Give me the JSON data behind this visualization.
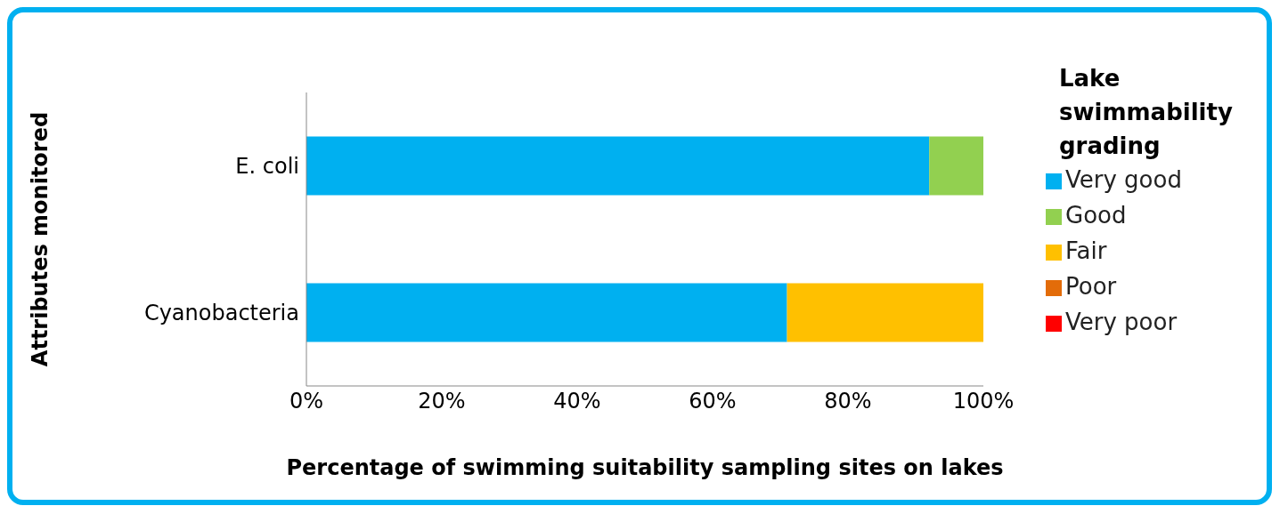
{
  "chart_data": {
    "type": "bar",
    "orientation": "horizontal",
    "stacked": true,
    "xlabel": "Percentage of swimming suitability sampling sites on lakes",
    "ylabel": "Attributes monitored",
    "legend_title": "Lake swimmability grading",
    "categories": [
      "E. coli",
      "Cyanobacteria"
    ],
    "series": [
      {
        "name": "Very good",
        "color": "#00b0f0",
        "values": [
          92,
          71
        ]
      },
      {
        "name": "Good",
        "color": "#92d050",
        "values": [
          8,
          0
        ]
      },
      {
        "name": "Fair",
        "color": "#ffc000",
        "values": [
          0,
          29
        ]
      },
      {
        "name": "Poor",
        "color": "#e36c09",
        "values": [
          0,
          0
        ]
      },
      {
        "name": "Very poor",
        "color": "#ff0000",
        "values": [
          0,
          0
        ]
      }
    ],
    "xlim": [
      0,
      100
    ],
    "xticks": [
      {
        "value": 0,
        "label": "0%"
      },
      {
        "value": 20,
        "label": "20%"
      },
      {
        "value": 40,
        "label": "40%"
      },
      {
        "value": 60,
        "label": "60%"
      },
      {
        "value": 80,
        "label": "80%"
      },
      {
        "value": 100,
        "label": "100%"
      }
    ],
    "grid": false,
    "legend": "right"
  }
}
